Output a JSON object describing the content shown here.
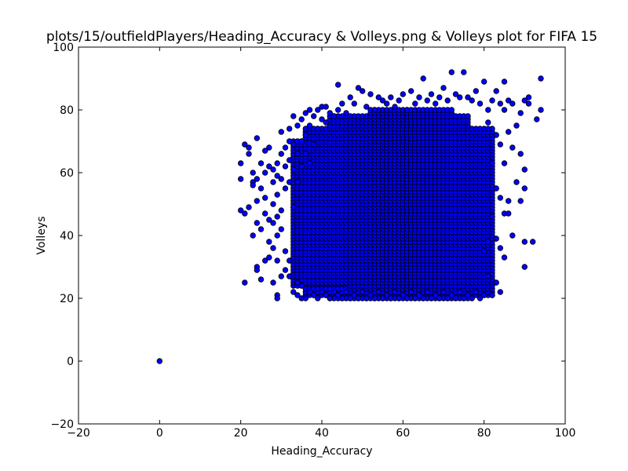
{
  "chart_data": {
    "type": "scatter",
    "title": "plots/15/outfieldPlayers/Heading_Accuracy & Volleys.png & Volleys plot for FIFA 15",
    "xlabel": "Heading_Accuracy",
    "ylabel": "Volleys",
    "xlim": [
      -20,
      100
    ],
    "ylim": [
      -20,
      100
    ],
    "xticks": [
      -20,
      0,
      20,
      40,
      60,
      80,
      100
    ],
    "yticks": [
      -20,
      0,
      20,
      40,
      60,
      80,
      100
    ],
    "xtick_labels": [
      "−20",
      "0",
      "20",
      "40",
      "60",
      "80",
      "100"
    ],
    "ytick_labels": [
      "−20",
      "0",
      "20",
      "40",
      "60",
      "80",
      "100"
    ],
    "grid": false,
    "marker_color": "#0000ff",
    "marker_edge": "#000000",
    "points": [
      [
        0,
        0
      ],
      [
        20,
        63
      ],
      [
        20,
        58
      ],
      [
        20,
        48
      ],
      [
        21,
        69
      ],
      [
        21,
        47
      ],
      [
        21,
        25
      ],
      [
        22,
        68
      ],
      [
        22,
        66
      ],
      [
        22,
        49
      ],
      [
        23,
        60
      ],
      [
        23,
        57
      ],
      [
        23,
        56
      ],
      [
        23,
        40
      ],
      [
        24,
        71
      ],
      [
        24,
        58
      ],
      [
        24,
        51
      ],
      [
        24,
        44
      ],
      [
        24,
        30
      ],
      [
        24,
        29
      ],
      [
        25,
        63
      ],
      [
        25,
        55
      ],
      [
        25,
        42
      ],
      [
        25,
        26
      ],
      [
        26,
        67
      ],
      [
        26,
        60
      ],
      [
        26,
        52
      ],
      [
        26,
        47
      ],
      [
        26,
        32
      ],
      [
        27,
        68
      ],
      [
        27,
        62
      ],
      [
        27,
        45
      ],
      [
        27,
        38
      ],
      [
        27,
        33
      ],
      [
        28,
        61
      ],
      [
        28,
        57
      ],
      [
        28,
        50
      ],
      [
        28,
        44
      ],
      [
        28,
        36
      ],
      [
        28,
        25
      ],
      [
        29,
        63
      ],
      [
        29,
        59
      ],
      [
        29,
        53
      ],
      [
        29,
        46
      ],
      [
        29,
        40
      ],
      [
        29,
        32
      ],
      [
        29,
        21
      ],
      [
        29,
        20
      ],
      [
        30,
        73
      ],
      [
        30,
        66
      ],
      [
        30,
        58
      ],
      [
        30,
        48
      ],
      [
        30,
        42
      ],
      [
        30,
        27
      ],
      [
        31,
        68
      ],
      [
        31,
        62
      ],
      [
        31,
        55
      ],
      [
        31,
        35
      ],
      [
        31,
        29
      ],
      [
        32,
        74
      ],
      [
        32,
        70
      ],
      [
        32,
        64
      ],
      [
        32,
        57
      ],
      [
        32,
        32
      ],
      [
        32,
        27
      ],
      [
        33,
        78
      ],
      [
        33,
        69
      ],
      [
        33,
        61
      ],
      [
        33,
        49
      ],
      [
        33,
        22
      ],
      [
        34,
        75
      ],
      [
        34,
        66
      ],
      [
        34,
        57
      ],
      [
        34,
        25
      ],
      [
        34,
        21
      ],
      [
        35,
        77
      ],
      [
        35,
        70
      ],
      [
        35,
        62
      ],
      [
        35,
        24
      ],
      [
        35,
        20
      ],
      [
        36,
        79
      ],
      [
        36,
        72
      ],
      [
        36,
        66
      ],
      [
        36,
        20
      ],
      [
        37,
        80
      ],
      [
        37,
        75
      ],
      [
        37,
        63
      ],
      [
        37,
        22
      ],
      [
        38,
        78
      ],
      [
        38,
        69
      ],
      [
        38,
        21
      ],
      [
        39,
        80
      ],
      [
        39,
        74
      ],
      [
        39,
        20
      ],
      [
        40,
        81
      ],
      [
        40,
        77
      ],
      [
        40,
        22
      ],
      [
        41,
        81
      ],
      [
        41,
        76
      ],
      [
        41,
        21
      ],
      [
        42,
        79
      ],
      [
        42,
        20
      ],
      [
        43,
        78
      ],
      [
        43,
        22
      ],
      [
        44,
        88
      ],
      [
        44,
        80
      ],
      [
        44,
        21
      ],
      [
        45,
        82
      ],
      [
        45,
        20
      ],
      [
        46,
        79
      ],
      [
        46,
        22
      ],
      [
        47,
        84
      ],
      [
        47,
        20
      ],
      [
        48,
        82
      ],
      [
        48,
        21
      ],
      [
        49,
        87
      ],
      [
        49,
        20
      ],
      [
        50,
        86
      ],
      [
        50,
        22
      ],
      [
        51,
        81
      ],
      [
        51,
        20
      ],
      [
        52,
        85
      ],
      [
        52,
        21
      ],
      [
        53,
        80
      ],
      [
        53,
        20
      ],
      [
        54,
        84
      ],
      [
        54,
        22
      ],
      [
        55,
        83
      ],
      [
        55,
        20
      ],
      [
        56,
        82
      ],
      [
        56,
        21
      ],
      [
        57,
        84
      ],
      [
        57,
        20
      ],
      [
        58,
        81
      ],
      [
        58,
        22
      ],
      [
        59,
        83
      ],
      [
        59,
        20
      ],
      [
        60,
        85
      ],
      [
        60,
        21
      ],
      [
        61,
        80
      ],
      [
        61,
        20
      ],
      [
        62,
        86
      ],
      [
        62,
        22
      ],
      [
        63,
        82
      ],
      [
        63,
        20
      ],
      [
        64,
        84
      ],
      [
        64,
        21
      ],
      [
        65,
        90
      ],
      [
        65,
        20
      ],
      [
        66,
        83
      ],
      [
        66,
        22
      ],
      [
        67,
        85
      ],
      [
        67,
        20
      ],
      [
        68,
        82
      ],
      [
        68,
        21
      ],
      [
        69,
        84
      ],
      [
        69,
        20
      ],
      [
        70,
        87
      ],
      [
        70,
        22
      ],
      [
        71,
        83
      ],
      [
        71,
        20
      ],
      [
        72,
        92
      ],
      [
        72,
        21
      ],
      [
        73,
        85
      ],
      [
        73,
        20
      ],
      [
        74,
        84
      ],
      [
        74,
        22
      ],
      [
        75,
        92
      ],
      [
        75,
        20
      ],
      [
        76,
        84
      ],
      [
        76,
        21
      ],
      [
        77,
        83
      ],
      [
        77,
        20
      ],
      [
        78,
        86
      ],
      [
        78,
        22
      ],
      [
        79,
        82
      ],
      [
        79,
        20
      ],
      [
        80,
        89
      ],
      [
        80,
        35
      ],
      [
        80,
        21
      ],
      [
        81,
        80
      ],
      [
        81,
        76
      ],
      [
        81,
        38
      ],
      [
        81,
        27
      ],
      [
        82,
        83
      ],
      [
        82,
        63
      ],
      [
        82,
        46
      ],
      [
        82,
        21
      ],
      [
        83,
        86
      ],
      [
        83,
        72
      ],
      [
        83,
        55
      ],
      [
        83,
        39
      ],
      [
        83,
        25
      ],
      [
        84,
        82
      ],
      [
        84,
        69
      ],
      [
        84,
        52
      ],
      [
        84,
        36
      ],
      [
        84,
        22
      ],
      [
        85,
        89
      ],
      [
        85,
        80
      ],
      [
        85,
        63
      ],
      [
        85,
        47
      ],
      [
        85,
        33
      ],
      [
        86,
        83
      ],
      [
        86,
        73
      ],
      [
        86,
        51
      ],
      [
        86,
        47
      ],
      [
        87,
        82
      ],
      [
        87,
        68
      ],
      [
        87,
        40
      ],
      [
        88,
        75
      ],
      [
        88,
        57
      ],
      [
        89,
        79
      ],
      [
        89,
        66
      ],
      [
        89,
        51
      ],
      [
        90,
        83
      ],
      [
        90,
        61
      ],
      [
        90,
        55
      ],
      [
        90,
        38
      ],
      [
        90,
        30
      ],
      [
        91,
        84
      ],
      [
        91,
        82
      ],
      [
        92,
        38
      ],
      [
        93,
        77
      ],
      [
        94,
        90
      ],
      [
        94,
        80
      ]
    ],
    "dense_regions": [
      {
        "x_range": [
          33,
          46
        ],
        "y_range": [
          24,
          70
        ]
      },
      {
        "x_range": [
          36,
          82
        ],
        "y_range": [
          21,
          74
        ]
      },
      {
        "x_range": [
          42,
          76
        ],
        "y_range": [
          20,
          78
        ]
      },
      {
        "x_range": [
          52,
          72
        ],
        "y_range": [
          20,
          80
        ]
      }
    ]
  }
}
